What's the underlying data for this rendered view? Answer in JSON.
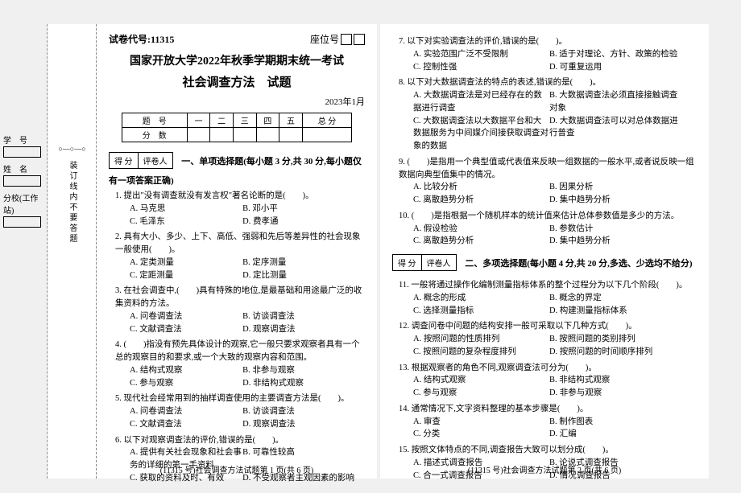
{
  "paper_code_label": "试卷代号:",
  "paper_code": "11315",
  "seat_label": "座位号",
  "university": "国家开放大学2022年秋季学期期末统一考试",
  "course_title": "社会调查方法　试题",
  "exam_date": "2023年1月",
  "score_headers": [
    "题　号",
    "一",
    "二",
    "三",
    "四",
    "五",
    "总 分"
  ],
  "score_row2": "分　数",
  "grade_labels": [
    "得 分",
    "评卷人"
  ],
  "sidebar": {
    "student_id": "学　号",
    "name": "姓　名",
    "branch": "分校(工作站)"
  },
  "binding_text": "装订线内不要答题",
  "section1_title": "一、单项选择题(每小题 3 分,共 30 分,每小题仅有一项答案正确)",
  "section2_title": "二、多项选择题(每小题 4 分,共 20 分,多选、少选均不给分)",
  "page1_questions": [
    {
      "n": "1.",
      "stem": "提出\"没有调查就没有发言权\"著名论断的是(　　)。",
      "opts": [
        "A. 马克思",
        "B. 邓小平",
        "C. 毛泽东",
        "D. 费孝通"
      ]
    },
    {
      "n": "2.",
      "stem": "具有大小、多少、上下、高低、强弱和先后等差异性的社会现象一般使用(　　)。",
      "opts": [
        "A. 定类测量",
        "B. 定序测量",
        "C. 定距测量",
        "D. 定比测量"
      ]
    },
    {
      "n": "3.",
      "stem": "在社会调查中,(　　)具有特殊的地位,是最基础和用途最广泛的收集资料的方法。",
      "opts": [
        "A. 问卷调查法",
        "B. 访谈调查法",
        "C. 文献调查法",
        "D. 观察调查法"
      ]
    },
    {
      "n": "4.",
      "stem": "(　　)指没有预先具体设计的观察,它一般只要求观察者具有一个总的观察目的和要求,或一个大致的观察内容和范围。",
      "opts": [
        "A. 结构式观察",
        "B. 非参与观察",
        "C. 参与观察",
        "D. 非结构式观察"
      ]
    },
    {
      "n": "5.",
      "stem": "现代社会经常用到的抽样调查使用的主要调查方法是(　　)。",
      "opts": [
        "A. 问卷调查法",
        "B. 访谈调查法",
        "C. 文献调查法",
        "D. 观察调查法"
      ]
    },
    {
      "n": "6.",
      "stem": "以下对观察调查法的评价,错误的是(　　)。",
      "opts": [
        "A. 提供有关社会现象和社会事务的详细的第一手资料",
        "B. 可靠性较高",
        "C. 获取的资料及时、有效",
        "D. 不受观察者主观因素的影响"
      ]
    }
  ],
  "page2_questions": [
    {
      "n": "7.",
      "stem": "以下对实验调查法的评价,错误的是(　　)。",
      "opts": [
        "A. 实验范围广泛不受限制",
        "B. 适于对理论、方针、政策的检验",
        "C. 控制性强",
        "D. 可重复运用"
      ]
    },
    {
      "n": "8.",
      "stem": "以下对大数据调查法的特点的表述,错误的是(　　)。",
      "opts": [
        "A. 大数据调查法是对已经存在的数据进行调查",
        "B. 大数据调查法必须直接接触调查对象",
        "C. 大数据调查法以大数据平台和大数据服务为中间媒介间接获取调查对象的数据",
        "D. 大数据调查法可以对总体数据进行普查"
      ]
    },
    {
      "n": "9.",
      "stem": "(　　)是指用一个典型值或代表值来反映一组数据的一般水平,或者说反映一组数据向典型值集中的情况。",
      "opts": [
        "A. 比较分析",
        "B. 因果分析",
        "C. 离散趋势分析",
        "D. 集中趋势分析"
      ]
    },
    {
      "n": "10.",
      "stem": "(　　)是指根据一个随机样本的统计值来估计总体参数值是多少的方法。",
      "opts": [
        "A. 假设检验",
        "B. 参数估计",
        "C. 离散趋势分析",
        "D. 集中趋势分析"
      ]
    }
  ],
  "page2_section2_questions": [
    {
      "n": "11.",
      "stem": "一般将通过操作化编制测量指标体系的整个过程分为以下几个阶段(　　)。",
      "opts": [
        "A. 概念的形成",
        "B. 概念的界定",
        "C. 选择测量指标",
        "D. 构建测量指标体系"
      ]
    },
    {
      "n": "12.",
      "stem": "调查问卷中问题的结构安排一般可采取以下几种方式(　　)。",
      "opts": [
        "A. 按照问题的性质排列",
        "B. 按照问题的类别排列",
        "C. 按照问题的复杂程度排列",
        "D. 按照问题的时间顺序排列"
      ]
    },
    {
      "n": "13.",
      "stem": "根据观察者的角色不同,观察调查法可分为(　　)。",
      "opts": [
        "A. 结构式观察",
        "B. 非结构式观察",
        "C. 参与观察",
        "D. 非参与观察"
      ]
    },
    {
      "n": "14.",
      "stem": "通常情况下,文字资料整理的基本步骤是(　　)。",
      "opts": [
        "A. 审查",
        "B. 制作图表",
        "C. 分类",
        "D. 汇编"
      ]
    },
    {
      "n": "15.",
      "stem": "按照文体特点的不同,调查报告大致可以划分成(　　)。",
      "opts": [
        "A. 描述式调查报告",
        "B. 论说式调查报告",
        "C. 合一式调查报告",
        "D. 情况调查报告"
      ]
    }
  ],
  "footer1": "(11315 号)社会调查方法试题第 1 页(共 6 页)",
  "footer2": "(11315 号)社会调查方法试题第 2 页(共 6 页)"
}
